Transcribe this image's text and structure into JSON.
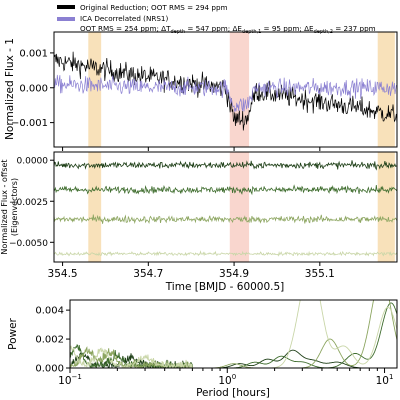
{
  "chart_data": [
    {
      "panel": "top",
      "type": "line",
      "ylabel": "Normalized Flux - 1",
      "xlim": [
        354.48,
        355.28
      ],
      "ylim": [
        -0.0017,
        0.0016
      ],
      "yticks": [
        {
          "value": 0.001,
          "label": "0.001"
        },
        {
          "value": 0.0,
          "label": "0.000"
        },
        {
          "value": -0.001,
          "label": "−0.001"
        }
      ],
      "legend_position": "top",
      "legend": {
        "line1": "Original Reduction; OOT RMS = 294 ppm",
        "line2a": "ICA Decorrelated (NRS1)",
        "line2b": "OOT RMS = 254 ppm; ΔT",
        "line2b_sub": "depth",
        "line2c": " = 547 ppm; ΔE",
        "line2c_sub": "depth,1",
        "line2d": " = 95 ppm; ΔE",
        "line2d_sub": "depth,2",
        "line2e": " = 237 ppm"
      },
      "series": [
        {
          "name": "Original Reduction",
          "color": "#000000",
          "trend": [
            [
              354.48,
              0.0008
            ],
            [
              354.56,
              0.0006
            ],
            [
              354.7,
              0.0003
            ],
            [
              354.88,
              0.0
            ],
            [
              354.9,
              -0.0009
            ],
            [
              354.93,
              -0.0009
            ],
            [
              354.95,
              -0.0001
            ],
            [
              355.1,
              -0.0004
            ],
            [
              355.2,
              -0.0006
            ],
            [
              355.28,
              -0.0008
            ]
          ],
          "scatter": 0.0003
        },
        {
          "name": "ICA Decorrelated (NRS1)",
          "color": "#8b80d2",
          "trend": [
            [
              354.48,
              0.0001
            ],
            [
              354.7,
              0.0
            ],
            [
              354.88,
              0.0
            ],
            [
              354.9,
              -0.0005
            ],
            [
              354.93,
              -0.0005
            ],
            [
              354.95,
              0.0
            ],
            [
              355.28,
              0.0
            ]
          ],
          "scatter": 0.00025
        }
      ]
    },
    {
      "panel": "middle",
      "type": "line",
      "ylabel": "Normalized Flux - offset",
      "ylabel2": "(Eigenvectors)",
      "xlabel": "Time [BMJD - 60000.5]",
      "xlim": [
        354.48,
        355.28
      ],
      "ylim": [
        -0.0062,
        0.0005
      ],
      "yticks": [
        {
          "value": 0.0,
          "label": "0.0000"
        },
        {
          "value": -0.0025,
          "label": "−0.0025"
        },
        {
          "value": -0.005,
          "label": "−0.0050"
        }
      ],
      "xticks": [
        {
          "value": 354.5,
          "label": "354.5"
        },
        {
          "value": 354.7,
          "label": "354.7"
        },
        {
          "value": 354.9,
          "label": "354.9"
        },
        {
          "value": 355.1,
          "label": "355.1"
        }
      ],
      "series": [
        {
          "color": "#1d3e16",
          "offset": -0.0003,
          "scatter": 0.0002
        },
        {
          "color": "#3f6d2e",
          "offset": -0.0018,
          "scatter": 0.0002
        },
        {
          "color": "#8ca560",
          "offset": -0.0036,
          "scatter": 0.0002
        },
        {
          "color": "#c9d6a8",
          "offset": -0.0057,
          "scatter": 0.0001
        }
      ]
    },
    {
      "panel": "bottom",
      "type": "line",
      "ylabel": "Power",
      "xlabel": "Period [hours]",
      "xscale": "log",
      "xlim": [
        0.1,
        12
      ],
      "ylim": [
        0,
        0.0047
      ],
      "yticks": [
        {
          "value": 0.0,
          "label": "0.000"
        },
        {
          "value": 0.002,
          "label": "0.002"
        },
        {
          "value": 0.004,
          "label": "0.004"
        }
      ],
      "xticks": [
        {
          "value": 0.1,
          "label": "10",
          "sup": "−1"
        },
        {
          "value": 1,
          "label": "10",
          "sup": "0"
        },
        {
          "value": 10,
          "label": "10",
          "sup": "1"
        }
      ],
      "series": [
        {
          "color": "#1d3e16",
          "peaks": [
            [
              0.12,
              0.0008
            ],
            [
              0.25,
              0.0005
            ],
            [
              1.2,
              0.0003
            ],
            [
              1.8,
              0.0006
            ],
            [
              2.6,
              0.0012
            ],
            [
              3.5,
              0.0005
            ],
            [
              5.0,
              0.0004
            ]
          ]
        },
        {
          "color": "#3f6d2e",
          "peaks": [
            [
              0.11,
              0.0012
            ],
            [
              0.2,
              0.0006
            ],
            [
              1.5,
              0.0004
            ],
            [
              2.2,
              0.0008
            ],
            [
              3.0,
              0.0004
            ],
            [
              6.5,
              0.001
            ],
            [
              11.0,
              0.0045
            ]
          ]
        },
        {
          "color": "#8ca560",
          "peaks": [
            [
              0.13,
              0.001
            ],
            [
              0.18,
              0.0008
            ],
            [
              1.1,
              0.0003
            ],
            [
              4.5,
              0.002
            ],
            [
              9.0,
              0.003
            ],
            [
              10.0,
              0.0038
            ]
          ]
        },
        {
          "color": "#c9d6a8",
          "peaks": [
            [
              0.1,
              0.0013
            ],
            [
              0.16,
              0.0011
            ],
            [
              0.3,
              0.0006
            ],
            [
              2.8,
              0.0012
            ],
            [
              3.2,
              0.004
            ],
            [
              3.7,
              0.0038
            ],
            [
              5.5,
              0.0015
            ],
            [
              10.5,
              0.0042
            ]
          ]
        }
      ]
    }
  ],
  "shaded_regions": [
    {
      "from": 354.56,
      "to": 354.59,
      "color": "#f7dcae"
    },
    {
      "from": 354.89,
      "to": 354.935,
      "color": "#f8cfc6"
    },
    {
      "from": 355.235,
      "to": 355.275,
      "color": "#f7dcae"
    }
  ]
}
